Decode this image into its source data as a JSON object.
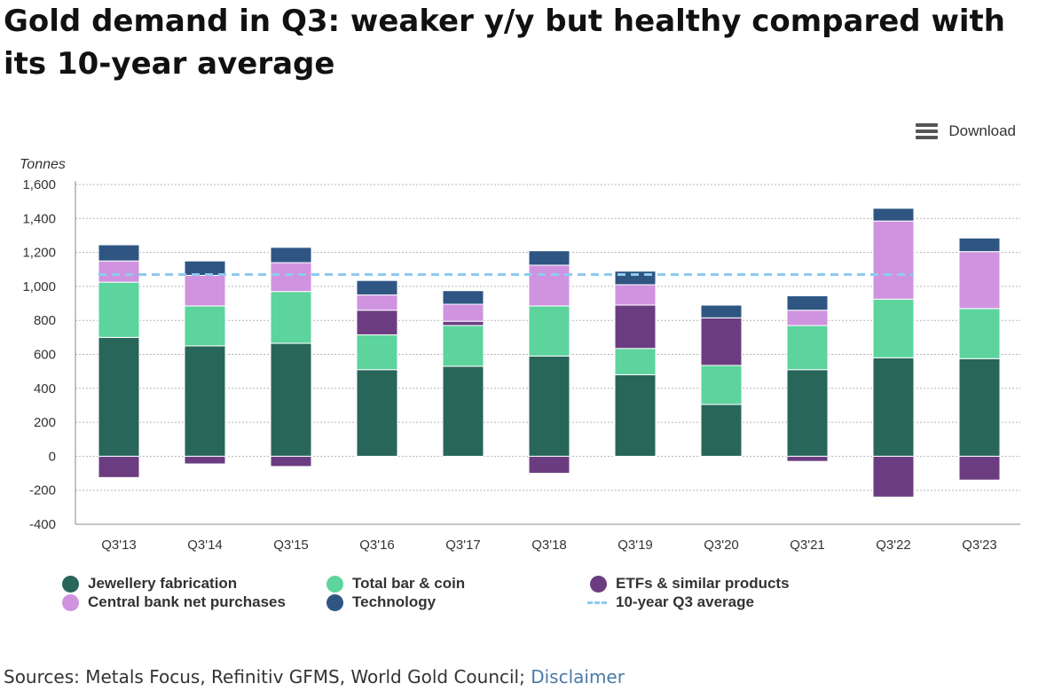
{
  "title": "Gold demand in Q3: weaker y/y but healthy compared with its 10-year average",
  "download_label": "Download",
  "sources_text": "Sources: Metals Focus, Refinitiv GFMS, World Gold Council; ",
  "disclaimer_label": "Disclaimer",
  "legend": [
    {
      "label": "Jewellery fabrication",
      "color": "#28665a",
      "kind": "dot"
    },
    {
      "label": "Total bar & coin",
      "color": "#5dd39e",
      "kind": "dot"
    },
    {
      "label": "ETFs & similar products",
      "color": "#6b3d80",
      "kind": "dot"
    },
    {
      "label": "Central bank net purchases",
      "color": "#cf93e0",
      "kind": "dot"
    },
    {
      "label": "Technology",
      "color": "#2f5683",
      "kind": "dot"
    },
    {
      "label": "10-year Q3 average",
      "color": "#8ecbef",
      "kind": "dash"
    }
  ],
  "chart_data": {
    "type": "bar",
    "stacked": true,
    "ylabel": "Tonnes",
    "ylim": [
      -400,
      1600
    ],
    "yticks": [
      -400,
      -200,
      0,
      200,
      400,
      600,
      800,
      1000,
      1200,
      1400,
      1600
    ],
    "ytick_labels": [
      "-400",
      "-200",
      "0",
      "200",
      "400",
      "600",
      "800",
      "1,000",
      "1,200",
      "1,400",
      "1,600"
    ],
    "categories": [
      "Q3'13",
      "Q3'14",
      "Q3'15",
      "Q3'16",
      "Q3'17",
      "Q3'18",
      "Q3'19",
      "Q3'20",
      "Q3'21",
      "Q3'22",
      "Q3'23"
    ],
    "series": [
      {
        "name": "Jewellery fabrication",
        "color": "#28665a",
        "values": [
          700,
          650,
          665,
          510,
          530,
          590,
          480,
          305,
          510,
          580,
          575
        ]
      },
      {
        "name": "Total bar & coin",
        "color": "#5dd39e",
        "values": [
          325,
          235,
          305,
          205,
          240,
          295,
          155,
          230,
          260,
          345,
          295
        ]
      },
      {
        "name": "ETFs & similar products",
        "color": "#6b3d80",
        "values": [
          -125,
          -45,
          -60,
          145,
          25,
          -100,
          255,
          280,
          -30,
          -240,
          -140
        ]
      },
      {
        "name": "Central bank net purchases",
        "color": "#cf93e0",
        "values": [
          125,
          180,
          170,
          90,
          100,
          240,
          120,
          0,
          90,
          460,
          335
        ]
      },
      {
        "name": "Technology",
        "color": "#2f5683",
        "values": [
          95,
          85,
          90,
          85,
          80,
          85,
          80,
          75,
          85,
          75,
          80
        ]
      }
    ],
    "reference_line": {
      "name": "10-year Q3 average",
      "value": 1070,
      "color": "#8ecbef",
      "style": "dashed"
    },
    "grid": "horizontal dotted",
    "legend_position": "bottom"
  }
}
